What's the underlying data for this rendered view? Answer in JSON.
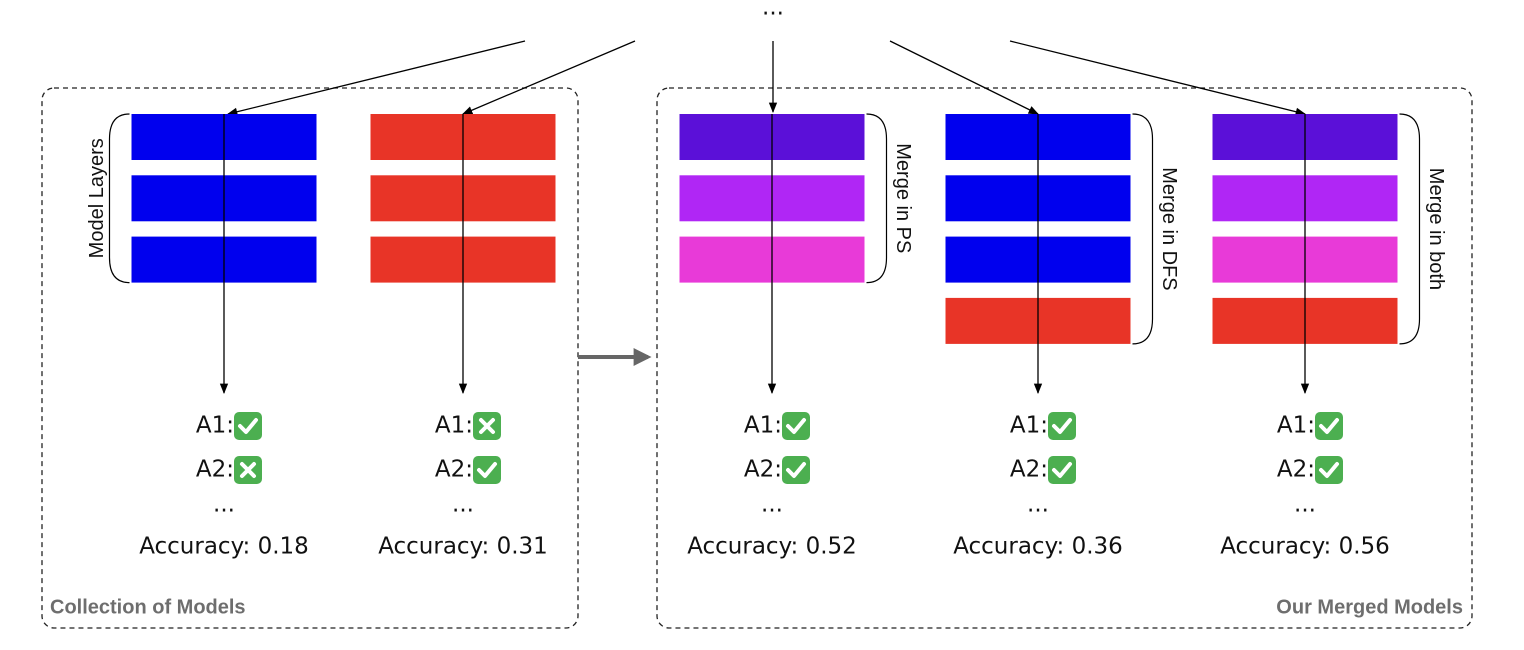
{
  "top_ellipsis": "...",
  "panels": [
    {
      "label": "Collection of Models"
    },
    {
      "label": "Our Merged Models"
    }
  ],
  "models": [
    {
      "layers": [
        "#0000ee",
        "#0000ee",
        "#0000ee"
      ],
      "brace_label": "Model Layers",
      "answers": [
        {
          "label": "A1:",
          "correct": true
        },
        {
          "label": "A2:",
          "correct": false
        }
      ],
      "ellipsis": "...",
      "accuracy": "Accuracy: 0.18"
    },
    {
      "layers": [
        "#e83427",
        "#e83427",
        "#e83427"
      ],
      "answers": [
        {
          "label": "A1:",
          "correct": false
        },
        {
          "label": "A2:",
          "correct": true
        }
      ],
      "ellipsis": "...",
      "accuracy": "Accuracy: 0.31"
    },
    {
      "layers": [
        "#5b10d8",
        "#b026f5",
        "#e83ad8"
      ],
      "brace_label": "Merge in PS",
      "answers": [
        {
          "label": "A1:",
          "correct": true
        },
        {
          "label": "A2:",
          "correct": true
        }
      ],
      "ellipsis": "...",
      "accuracy": "Accuracy: 0.52"
    },
    {
      "layers": [
        "#0000ee",
        "#0000ee",
        "#0000ee",
        "#e83427"
      ],
      "brace_label": "Merge in DFS",
      "answers": [
        {
          "label": "A1:",
          "correct": true
        },
        {
          "label": "A2:",
          "correct": true
        }
      ],
      "ellipsis": "...",
      "accuracy": "Accuracy: 0.36"
    },
    {
      "layers": [
        "#5b10d8",
        "#b026f5",
        "#e83ad8",
        "#e83427"
      ],
      "brace_label": "Merge in both",
      "answers": [
        {
          "label": "A1:",
          "correct": true
        },
        {
          "label": "A2:",
          "correct": true
        }
      ],
      "ellipsis": "...",
      "accuracy": "Accuracy: 0.56"
    }
  ]
}
